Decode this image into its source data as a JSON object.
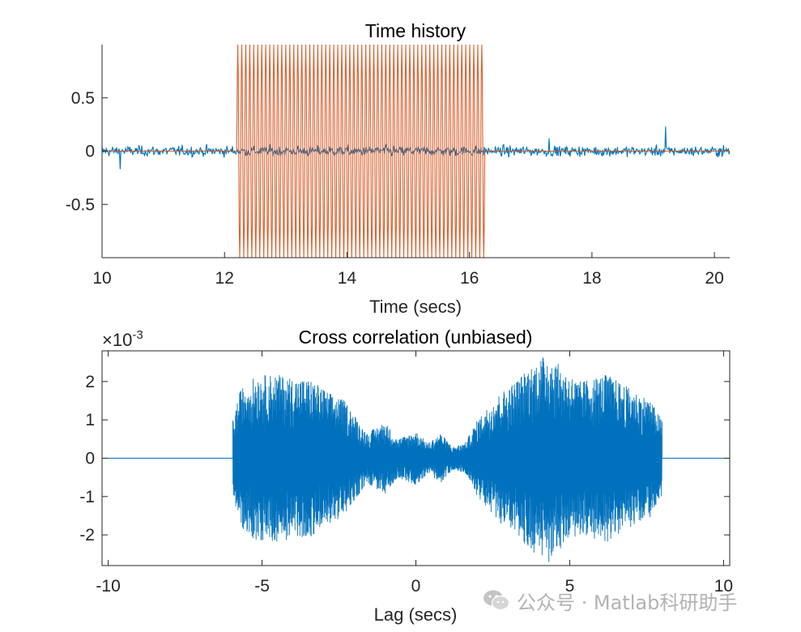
{
  "figure_bg": "#ffffff",
  "colors": {
    "blue": "#0072BD",
    "orange": "#D95319",
    "axes": "#262626"
  },
  "watermark": {
    "text": "公众号 · Matlab科研助手",
    "icon": "wechat-icon"
  },
  "chart_data": [
    {
      "type": "line",
      "title": "Time history",
      "xlabel": "Time (secs)",
      "ylabel": "",
      "xlim": [
        10,
        20.25
      ],
      "ylim": [
        -1,
        1
      ],
      "xticks": [
        10,
        12,
        14,
        16,
        18,
        20
      ],
      "xtick_labels": [
        "10",
        "12",
        "14",
        "16",
        "18",
        "20"
      ],
      "yticks": [
        0.5,
        0,
        -0.5
      ],
      "ytick_labels": [
        "0.5",
        "0",
        "-0.5"
      ],
      "grid": false,
      "legend": "none",
      "series": [
        {
          "color": "#0072BD",
          "description_values": {
            "noise_amplitude": 0.05,
            "span": [
              10,
              20.25
            ],
            "peak_near": [
              [
                19.2,
                0.23
              ],
              [
                10.3,
                -0.17
              ],
              [
                17.3,
                0.12
              ]
            ]
          }
        },
        {
          "color": "#D95319",
          "description_values": {
            "burst_start": 12.2,
            "burst_end": 16.25,
            "amplitude": 1.0,
            "cycles_in_burst": 62,
            "baseline": 0
          }
        }
      ]
    },
    {
      "type": "line",
      "title": "Cross correlation (unbiased)",
      "xlabel": "Lag (secs)",
      "ylabel": "",
      "exponent_label": "×10",
      "exponent_power": "-3",
      "xlim": [
        -10.2,
        10.2
      ],
      "ylim": [
        -2.8,
        2.8
      ],
      "xticks": [
        -10,
        -5,
        0,
        5,
        10
      ],
      "xtick_labels": [
        "-10",
        "-5",
        "0",
        "5",
        "10"
      ],
      "yticks": [
        2,
        1,
        0,
        -1,
        -2
      ],
      "ytick_labels": [
        "2",
        "1",
        "0",
        "-1",
        "-2"
      ],
      "grid": false,
      "legend": "none",
      "series": [
        {
          "color": "#0072BD",
          "description_values": {
            "active_range": [
              -5.95,
              8.0
            ],
            "envelope_points": [
              [
                -5.95,
                1.0
              ],
              [
                -5.7,
                1.8
              ],
              [
                -5.2,
                2.15
              ],
              [
                -4.6,
                2.2
              ],
              [
                -4.0,
                2.1
              ],
              [
                -3.4,
                2.05
              ],
              [
                -2.8,
                1.7
              ],
              [
                -2.3,
                1.5
              ],
              [
                -1.6,
                0.65
              ],
              [
                -1.0,
                0.95
              ],
              [
                -0.6,
                0.5
              ],
              [
                0,
                0.7
              ],
              [
                0.4,
                0.4
              ],
              [
                0.8,
                0.65
              ],
              [
                1.2,
                0.3
              ],
              [
                1.6,
                0.4
              ],
              [
                2.0,
                1.0
              ],
              [
                2.6,
                1.6
              ],
              [
                3.2,
                2.0
              ],
              [
                3.8,
                2.45
              ],
              [
                4.3,
                2.75
              ],
              [
                4.8,
                2.3
              ],
              [
                5.3,
                2.0
              ],
              [
                6.2,
                2.2
              ],
              [
                7.2,
                1.7
              ],
              [
                7.6,
                1.55
              ],
              [
                8.0,
                1.0
              ]
            ]
          }
        }
      ]
    }
  ]
}
